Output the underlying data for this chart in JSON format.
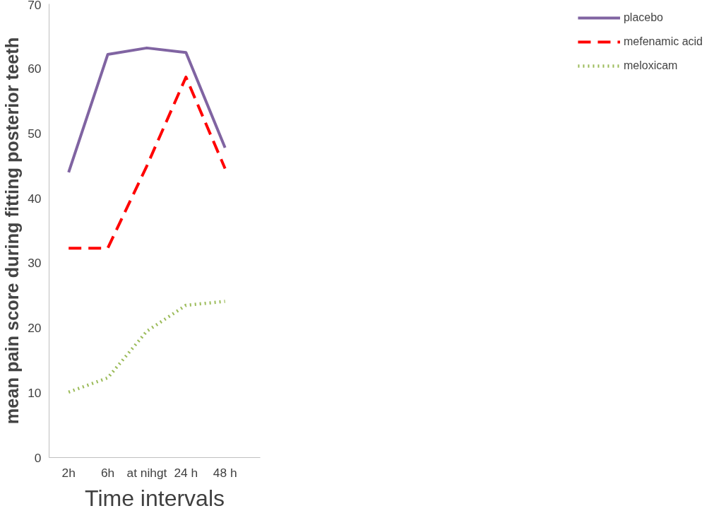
{
  "chart_data": {
    "type": "line",
    "xlabel": "Time intervals",
    "ylabel": "mean pain score during fitting posterior teeth",
    "categories": [
      "2h",
      "6h",
      "at nihgt",
      "24 h",
      "48 h"
    ],
    "series": [
      {
        "name": "placebo",
        "color": "#8064a2",
        "line_style": "solid",
        "values": [
          44,
          62.2,
          63.2,
          62.5,
          47.8
        ]
      },
      {
        "name": "mefenamic acid",
        "color": "#ff0000",
        "line_style": "dashed",
        "values": [
          32.3,
          32.3,
          45,
          58.7,
          44.6
        ]
      },
      {
        "name": "meloxicam",
        "color": "#9bbb59",
        "line_style": "dotted",
        "values": [
          10.1,
          12.3,
          19.5,
          23.5,
          24.1
        ]
      }
    ],
    "ylim": [
      0,
      70
    ],
    "yticks": [
      0,
      10,
      20,
      30,
      40,
      50,
      60,
      70
    ],
    "grid": false,
    "legend": "top right",
    "marker": "none"
  }
}
